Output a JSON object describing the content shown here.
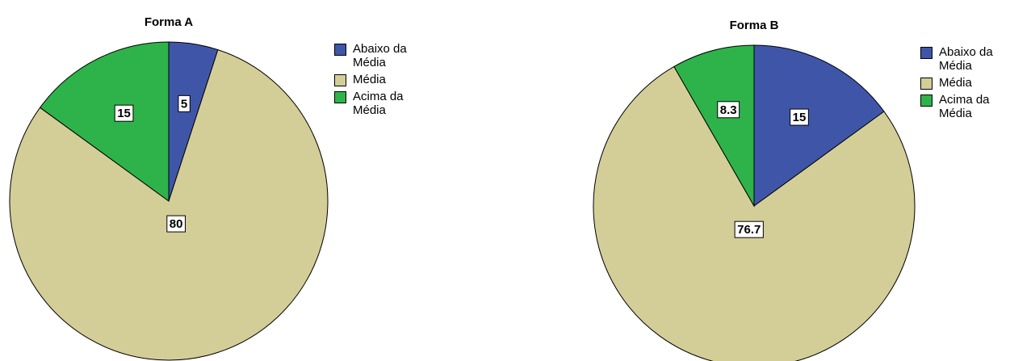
{
  "chart_data": [
    {
      "type": "pie",
      "title": "Forma A",
      "categories": [
        "Abaixo da Média",
        "Média",
        "Acima da Média"
      ],
      "values": [
        5,
        80,
        15
      ],
      "colors": [
        "#3f56a8",
        "#d3ce97",
        "#2db34a"
      ],
      "legend": "right"
    },
    {
      "type": "pie",
      "title": "Forma B",
      "categories": [
        "Abaixo da Média",
        "Média",
        "Acima da Média"
      ],
      "values": [
        15,
        76.7,
        8.3
      ],
      "colors": [
        "#3f56a8",
        "#d3ce97",
        "#2db34a"
      ],
      "legend": "right"
    }
  ]
}
